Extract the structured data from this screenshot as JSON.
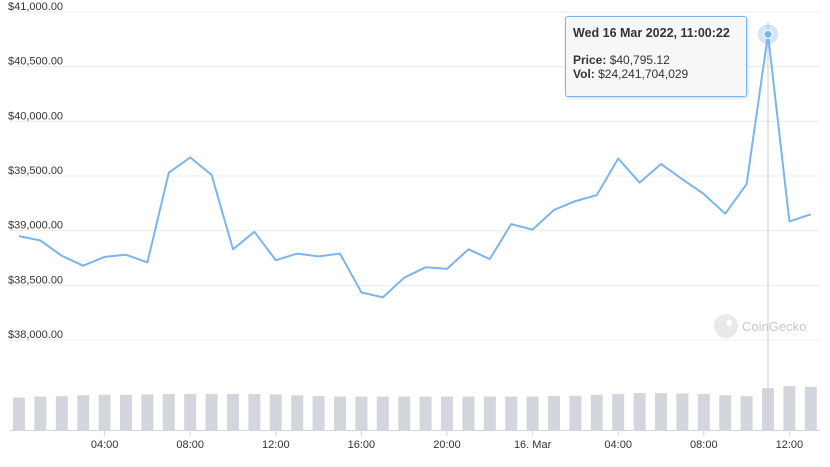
{
  "colors": {
    "line": "#7cb5ec",
    "volume": "#d3d6dc",
    "grid": "#ececec",
    "crosshair": "#cccccc",
    "tooltip_border": "#7cb5ec"
  },
  "tooltip": {
    "date": "Wed 16 Mar 2022, 11:00:22",
    "price_label": "Price:",
    "price_value": "$40,795.12",
    "vol_label": "Vol:",
    "vol_value": "$24,241,704,029"
  },
  "watermark": "CoinGecko",
  "chart_data": {
    "type": "line",
    "title": "",
    "xlabel": "",
    "ylabel": "",
    "grid": true,
    "ylim": [
      37700,
      41000
    ],
    "y_ticks": [
      38000,
      38500,
      39000,
      39500,
      40000,
      40500,
      41000
    ],
    "y_tick_labels": [
      "$38,000.00",
      "$38,500.00",
      "$39,000.00",
      "$39,500.00",
      "$40,000.00",
      "$40,500.00",
      "$41,000.00"
    ],
    "x_ticks": [
      4,
      8,
      12,
      16,
      20,
      24,
      28,
      32,
      36
    ],
    "x_tick_labels": [
      "04:00",
      "08:00",
      "12:00",
      "16:00",
      "20:00",
      "16. Mar",
      "04:00",
      "08:00",
      "12:00"
    ],
    "x_unit": "hours since 15 Mar 2022 00:00",
    "series": [
      {
        "type": "line",
        "x": [
          0,
          1,
          2,
          3,
          4,
          5,
          6,
          7,
          8,
          9,
          10,
          11,
          12,
          13,
          14,
          15,
          16,
          17,
          18,
          19,
          20,
          21,
          22,
          23,
          24,
          25,
          26,
          27,
          28,
          29,
          30,
          31,
          32,
          33,
          34,
          35,
          36,
          37
        ],
        "y": [
          38950,
          38910,
          38770,
          38680,
          38760,
          38780,
          38710,
          39530,
          39670,
          39510,
          38830,
          38990,
          38730,
          38790,
          38765,
          38790,
          38435,
          38390,
          38570,
          38665,
          38650,
          38830,
          38740,
          39060,
          39010,
          39190,
          39270,
          39325,
          39660,
          39440,
          39610,
          39470,
          39335,
          39155,
          39425,
          40795,
          39085,
          39150
        ]
      },
      {
        "type": "bar",
        "note": "volume",
        "x": [
          0,
          1,
          2,
          3,
          4,
          5,
          6,
          7,
          8,
          9,
          10,
          11,
          12,
          13,
          14,
          15,
          16,
          17,
          18,
          19,
          20,
          21,
          22,
          23,
          24,
          25,
          26,
          27,
          28,
          29,
          30,
          31,
          32,
          33,
          34,
          35,
          36,
          37
        ],
        "y": [
          0.74,
          0.76,
          0.77,
          0.79,
          0.8,
          0.8,
          0.81,
          0.82,
          0.82,
          0.82,
          0.82,
          0.82,
          0.81,
          0.79,
          0.77,
          0.76,
          0.76,
          0.76,
          0.76,
          0.76,
          0.76,
          0.76,
          0.76,
          0.76,
          0.76,
          0.77,
          0.78,
          0.8,
          0.82,
          0.84,
          0.84,
          0.83,
          0.82,
          0.79,
          0.77,
          0.95,
          1.0,
          0.98
        ]
      }
    ],
    "highlight": {
      "x": 35,
      "y": 40795.12
    }
  }
}
